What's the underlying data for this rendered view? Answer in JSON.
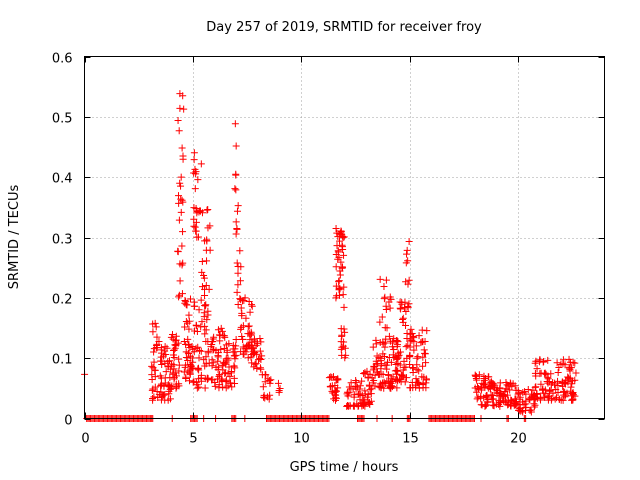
{
  "chart_data": {
    "type": "scatter",
    "title": "Day 257 of 2019, SRMTID for receiver froy",
    "xlabel": "GPS time / hours",
    "ylabel": "SRMTID / TECUs",
    "xlim": [
      0,
      24
    ],
    "ylim": [
      0,
      0.6
    ],
    "x_ticks": [
      0,
      5,
      10,
      15,
      20
    ],
    "y_ticks": [
      0,
      0.1,
      0.2,
      0.3,
      0.4,
      0.5,
      0.6
    ],
    "x_tick_labels": [
      "0",
      "5",
      "10",
      "15",
      "20"
    ],
    "y_tick_labels": [
      "0",
      "0.1",
      "0.2",
      "0.3",
      "0.4",
      "0.5",
      "0.6"
    ],
    "grid": true,
    "marker": "+",
    "color": "#ff0000",
    "series": [
      {
        "name": "SRMTID",
        "clusters": [
          {
            "x_range": [
              0.0,
              0.05
            ],
            "y_range": [
              0.07,
              0.08
            ],
            "n": 1
          },
          {
            "x_range": [
              3.1,
              3.5
            ],
            "y_range": [
              0.03,
              0.16
            ],
            "n": 30
          },
          {
            "x_range": [
              3.5,
              4.0
            ],
            "y_range": [
              0.03,
              0.12
            ],
            "n": 45
          },
          {
            "x_range": [
              4.0,
              4.4
            ],
            "y_range": [
              0.05,
              0.14
            ],
            "n": 35
          },
          {
            "x_range": [
              4.3,
              4.6
            ],
            "y_range": [
              0.2,
              0.55
            ],
            "n": 30
          },
          {
            "x_range": [
              4.6,
              4.9
            ],
            "y_range": [
              0.06,
              0.2
            ],
            "n": 30
          },
          {
            "x_range": [
              4.8,
              5.0
            ],
            "y_range": [
              0.08,
              0.12
            ],
            "n": 12
          },
          {
            "x_range": [
              5.0,
              5.4
            ],
            "y_range": [
              0.3,
              0.45
            ],
            "n": 25
          },
          {
            "x_range": [
              5.0,
              5.4
            ],
            "y_range": [
              0.05,
              0.2
            ],
            "n": 30
          },
          {
            "x_range": [
              5.4,
              5.8
            ],
            "y_range": [
              0.15,
              0.35
            ],
            "n": 30
          },
          {
            "x_range": [
              5.5,
              6.0
            ],
            "y_range": [
              0.05,
              0.15
            ],
            "n": 30
          },
          {
            "x_range": [
              6.0,
              6.6
            ],
            "y_range": [
              0.05,
              0.15
            ],
            "n": 40
          },
          {
            "x_range": [
              6.5,
              7.0
            ],
            "y_range": [
              0.05,
              0.14
            ],
            "n": 35
          },
          {
            "x_range": [
              6.9,
              7.1
            ],
            "y_range": [
              0.3,
              0.51
            ],
            "n": 12
          },
          {
            "x_range": [
              7.0,
              7.3
            ],
            "y_range": [
              0.18,
              0.28
            ],
            "n": 10
          },
          {
            "x_range": [
              7.2,
              7.8
            ],
            "y_range": [
              0.1,
              0.2
            ],
            "n": 45
          },
          {
            "x_range": [
              7.7,
              8.2
            ],
            "y_range": [
              0.08,
              0.14
            ],
            "n": 25
          },
          {
            "x_range": [
              8.2,
              8.6
            ],
            "y_range": [
              0.03,
              0.08
            ],
            "n": 15
          },
          {
            "x_range": [
              8.9,
              9.1
            ],
            "y_range": [
              0.04,
              0.06
            ],
            "n": 4
          },
          {
            "x_range": [
              11.3,
              11.7
            ],
            "y_range": [
              0.03,
              0.07
            ],
            "n": 25
          },
          {
            "x_range": [
              11.6,
              12.0
            ],
            "y_range": [
              0.2,
              0.32
            ],
            "n": 40
          },
          {
            "x_range": [
              11.8,
              12.1
            ],
            "y_range": [
              0.1,
              0.2
            ],
            "n": 15
          },
          {
            "x_range": [
              12.1,
              12.7
            ],
            "y_range": [
              0.02,
              0.07
            ],
            "n": 30
          },
          {
            "x_range": [
              12.7,
              13.3
            ],
            "y_range": [
              0.02,
              0.08
            ],
            "n": 40
          },
          {
            "x_range": [
              13.3,
              13.9
            ],
            "y_range": [
              0.05,
              0.13
            ],
            "n": 45
          },
          {
            "x_range": [
              13.6,
              14.2
            ],
            "y_range": [
              0.15,
              0.24
            ],
            "n": 15
          },
          {
            "x_range": [
              13.9,
              14.5
            ],
            "y_range": [
              0.05,
              0.14
            ],
            "n": 45
          },
          {
            "x_range": [
              14.4,
              15.0
            ],
            "y_range": [
              0.06,
              0.2
            ],
            "n": 45
          },
          {
            "x_range": [
              14.8,
              15.0
            ],
            "y_range": [
              0.22,
              0.32
            ],
            "n": 8
          },
          {
            "x_range": [
              15.0,
              15.8
            ],
            "y_range": [
              0.05,
              0.15
            ],
            "n": 60
          },
          {
            "x_range": [
              18.0,
              18.3
            ],
            "y_range": [
              0.03,
              0.1
            ],
            "n": 15
          },
          {
            "x_range": [
              18.3,
              19.0
            ],
            "y_range": [
              0.02,
              0.07
            ],
            "n": 50
          },
          {
            "x_range": [
              19.0,
              19.5
            ],
            "y_range": [
              0.02,
              0.06
            ],
            "n": 30
          },
          {
            "x_range": [
              19.5,
              20.0
            ],
            "y_range": [
              0.02,
              0.06
            ],
            "n": 30
          },
          {
            "x_range": [
              20.0,
              20.8
            ],
            "y_range": [
              0.01,
              0.05
            ],
            "n": 45
          },
          {
            "x_range": [
              20.8,
              21.5
            ],
            "y_range": [
              0.03,
              0.1
            ],
            "n": 45
          },
          {
            "x_range": [
              21.5,
              22.7
            ],
            "y_range": [
              0.03,
              0.1
            ],
            "n": 70
          }
        ],
        "zero_segments": [
          [
            0.1,
            3.1
          ],
          [
            3.15,
            3.2
          ],
          [
            4.05,
            4.1
          ],
          [
            4.9,
            5.2
          ],
          [
            5.5,
            5.55
          ],
          [
            6.05,
            6.1
          ],
          [
            6.8,
            7.0
          ],
          [
            7.4,
            7.45
          ],
          [
            8.4,
            11.3
          ],
          [
            12.6,
            12.9
          ],
          [
            13.5,
            13.55
          ],
          [
            14.2,
            14.25
          ],
          [
            14.9,
            15.05
          ],
          [
            15.9,
            18.0
          ],
          [
            18.3,
            18.35
          ],
          [
            19.5,
            19.6
          ],
          [
            20.3,
            20.4
          ]
        ]
      }
    ]
  }
}
